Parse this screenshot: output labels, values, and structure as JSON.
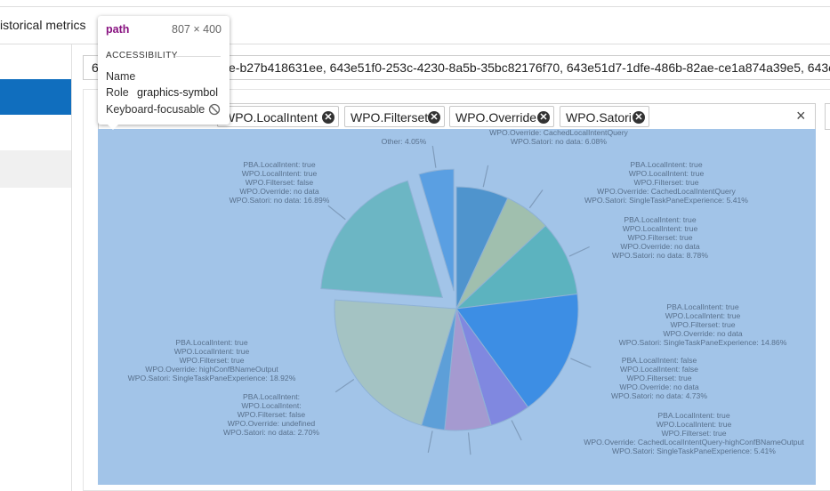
{
  "tab": {
    "label": "istorical metrics"
  },
  "tooltip": {
    "element": "path",
    "size": "807 × 400",
    "section": "ACCESSIBILITY",
    "rows": [
      {
        "key": "Name",
        "value": ""
      },
      {
        "key": "Role",
        "value": "graphics-symbol"
      },
      {
        "key": "Keyboard-focusable",
        "value": null
      }
    ]
  },
  "input": {
    "prefix": "6",
    "text": "e-b27b418631ee, 643e51f0-253c-4230-8a5b-35bc82176f70, 643e51d7-1dfe-486b-82ae-ce1a874a39e5, 643e5"
  },
  "chips": [
    "WPO.LocalIntent",
    "WPO.Filterset",
    "WPO.Override",
    "WPO.Satori"
  ],
  "clear": "×",
  "chart_data": {
    "type": "pie",
    "start": "top",
    "direction": "clockwise",
    "slices": [
      {
        "label_lines": [
          "WPO.Override: CachedLocalIntentQuery",
          "WPO.Satori: no data:"
        ],
        "value": 6.08,
        "value_label": "6.08%",
        "color": "#4f94cd",
        "exploded": false
      },
      {
        "label_lines": [
          "PBA.LocalIntent: true",
          "WPO.LocalIntent: true",
          "WPO.Filterset: true",
          "WPO.Override: CachedLocalIntentQuery",
          "WPO.Satori: SingleTaskPaneExperience:"
        ],
        "value": 5.41,
        "value_label": "5.41%",
        "color": "#a0bfae",
        "exploded": false
      },
      {
        "label_lines": [
          "PBA.LocalIntent: true",
          "WPO.LocalIntent: true",
          "WPO.Filterset: true",
          "WPO.Override: no data",
          "WPO.Satori: no data:"
        ],
        "value": 8.78,
        "value_label": "8.78%",
        "color": "#5cb3bf",
        "exploded": false
      },
      {
        "label_lines": [
          "PBA.LocalIntent: true",
          "WPO.LocalIntent: true",
          "WPO.Filterset: true",
          "WPO.Override: no data",
          "WPO.Satori: SingleTaskPaneExperience:"
        ],
        "value": 14.86,
        "value_label": "14.86%",
        "color": "#3d8ee4",
        "exploded": false
      },
      {
        "label_lines": [
          "PBA.LocalIntent: false",
          "WPO.LocalIntent: false",
          "WPO.Filterset: true",
          "WPO.Override: no data",
          "WPO.Satori: no data:"
        ],
        "value": 4.73,
        "value_label": "4.73%",
        "color": "#8088e0",
        "exploded": false
      },
      {
        "label_lines": [
          "PBA.LocalIntent: true",
          "WPO.LocalIntent: true",
          "WPO.Filterset: true",
          "WPO.Override: CachedLocalIntentQuery-highConfBNameOutput",
          "WPO.Satori: SingleTaskPaneExperience:"
        ],
        "value": 5.41,
        "value_label": "5.41%",
        "color": "#a59ad0",
        "exploded": false
      },
      {
        "label_lines": [
          "PBA.LocalIntent:",
          "WPO.LocalIntent:",
          "WPO.Filterset: false",
          "WPO.Override: undefined",
          "WPO.Satori: no data:"
        ],
        "value": 2.7,
        "value_label": "2.70%",
        "color": "#5d9fd8",
        "exploded": false
      },
      {
        "label_lines": [
          "PBA.LocalIntent: true",
          "WPO.LocalIntent: true",
          "WPO.Filterset: true",
          "WPO.Override: highConfBNameOutput",
          "WPO.Satori: SingleTaskPaneExperience:"
        ],
        "value": 18.92,
        "value_label": "18.92%",
        "color": "#a4c3c3",
        "exploded": false
      },
      {
        "label_lines": [
          "PBA.LocalIntent: true",
          "WPO.LocalIntent: true",
          "WPO.Filterset: false",
          "WPO.Override: no data",
          "WPO.Satori: no data:"
        ],
        "value": 16.89,
        "value_label": "16.89%",
        "color": "#6cb6c4",
        "exploded": true
      },
      {
        "label_lines": [
          "Other:"
        ],
        "value": 4.05,
        "value_label": "4.05%",
        "color": "#5a9fe2",
        "exploded": true
      }
    ]
  }
}
